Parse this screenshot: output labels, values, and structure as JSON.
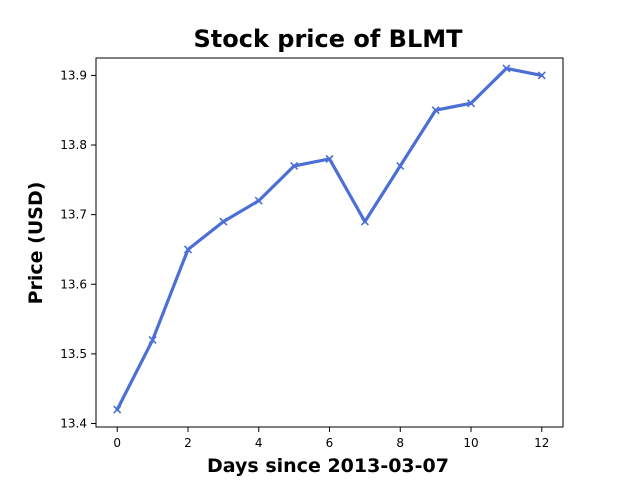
{
  "chart_data": {
    "type": "line",
    "title": "Stock price of BLMT",
    "xlabel": "Days since 2013-03-07",
    "ylabel": "Price (USD)",
    "x": [
      0,
      1,
      2,
      3,
      4,
      5,
      6,
      7,
      8,
      9,
      10,
      11,
      12
    ],
    "series": [
      {
        "values": [
          13.42,
          13.52,
          13.65,
          13.69,
          13.72,
          13.77,
          13.78,
          13.69,
          13.77,
          13.85,
          13.86,
          13.91,
          13.9
        ],
        "color": "#4c6fd6",
        "marker": "x"
      }
    ],
    "xlim": [
      -0.6,
      12.6
    ],
    "ylim": [
      13.395,
      13.925
    ],
    "xticks": [
      0,
      2,
      4,
      6,
      8,
      10,
      12
    ],
    "yticks": [
      13.4,
      13.5,
      13.6,
      13.7,
      13.8,
      13.9
    ],
    "xtick_labels": [
      "0",
      "2",
      "4",
      "6",
      "8",
      "10",
      "12"
    ],
    "ytick_labels": [
      "13.4",
      "13.5",
      "13.6",
      "13.7",
      "13.8",
      "13.9"
    ],
    "grid": false,
    "legend": false
  }
}
